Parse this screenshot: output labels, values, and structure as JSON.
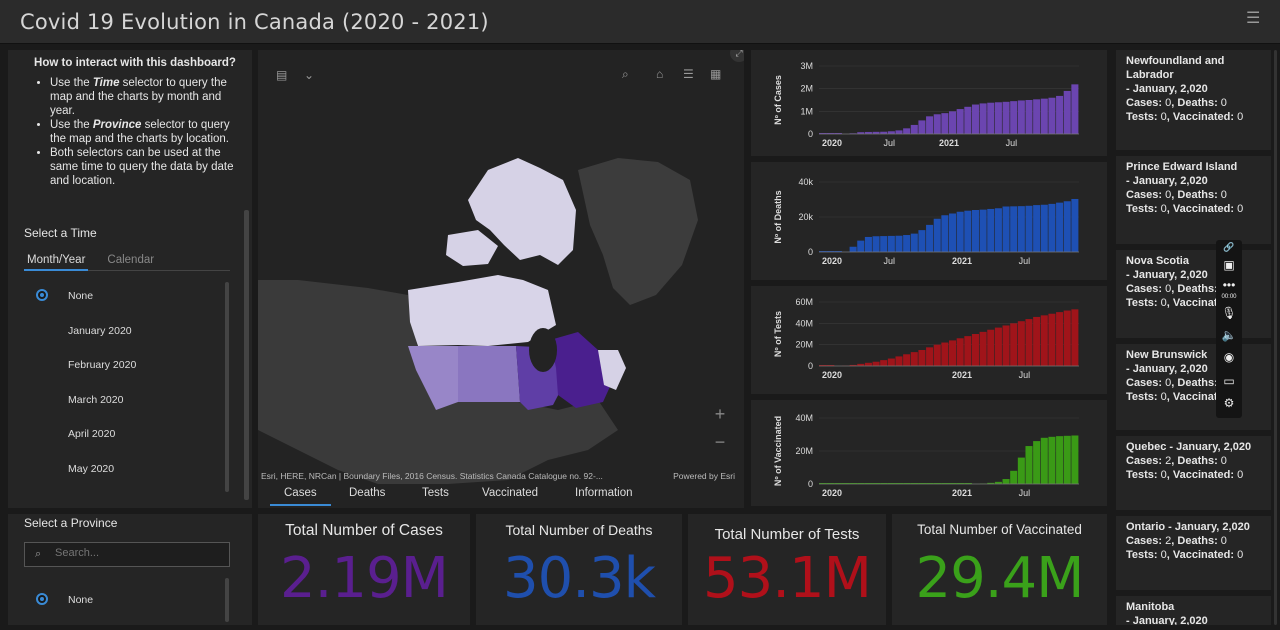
{
  "header": {
    "title": "Covid 19 Evolution in Canada (2020 - 2021)",
    "menu_icon": "hamburger-icon"
  },
  "howto": {
    "title": "How to interact with this dashboard?",
    "b1_pre": "Use the ",
    "b1_em": "Time",
    "b1_post": " selector to query the map and the charts by month and year.",
    "b2_pre": "Use the ",
    "b2_em": "Province",
    "b2_post": " selector to query the map and the charts by location.",
    "b3": "Both selectors can be used at the same time to query the data by date and location."
  },
  "time_selector": {
    "title": "Select a Time",
    "tabs": [
      "Month/Year",
      "Calendar"
    ],
    "options": [
      "None",
      "January 2020",
      "February 2020",
      "March 2020",
      "April 2020",
      "May 2020"
    ],
    "selected": "None"
  },
  "province_selector": {
    "title": "Select a Province",
    "search_placeholder": "Search...",
    "options": [
      "None"
    ],
    "selected": "None"
  },
  "map": {
    "attribution": "Esri, HERE, NRCan | Boundary Files, 2016 Census. Statistics Canada Catalogue no. 92-...",
    "powered": "Powered by Esri",
    "zoom_in": "+",
    "zoom_out": "−",
    "tabs": [
      "Cases",
      "Deaths",
      "Tests",
      "Vaccinated",
      "Information"
    ],
    "active_tab": "Cases"
  },
  "stats": [
    {
      "title": "Total Number of Cases",
      "value": "2.19M",
      "color": "#5a1f8f"
    },
    {
      "title": "Total Number of Deaths",
      "value": "30.3k",
      "color": "#1f4fad"
    },
    {
      "title": "Total Number of Tests",
      "value": "53.1M",
      "color": "#b0101a"
    },
    {
      "title": "Total Number of Vaccinated",
      "value": "29.4M",
      "color": "#3aa11a"
    }
  ],
  "chart_data": [
    {
      "type": "bar",
      "ylabel": "Nº of Cases",
      "color": "#6b45b0",
      "yticks": [
        "0",
        "1M",
        "2M",
        "3M"
      ],
      "ymax": 3000000,
      "xticks": [
        "2020",
        "Jul",
        "2021",
        "Jul"
      ],
      "values": [
        0,
        0,
        0,
        2000,
        30000,
        80000,
        90000,
        95000,
        100000,
        120000,
        160000,
        250000,
        400000,
        600000,
        780000,
        870000,
        920000,
        1000000,
        1100000,
        1200000,
        1300000,
        1350000,
        1380000,
        1400000,
        1420000,
        1450000,
        1480000,
        1500000,
        1530000,
        1560000,
        1600000,
        1680000,
        1900000,
        2190000
      ]
    },
    {
      "type": "bar",
      "ylabel": "Nº of Deaths",
      "color": "#1e50b4",
      "yticks": [
        "0",
        "20k",
        "40k"
      ],
      "ymax": 40000,
      "xticks": [
        "2020",
        "Jul",
        "2021",
        "Jul"
      ],
      "values": [
        0,
        0,
        0,
        100,
        3000,
        6500,
        8600,
        9000,
        9100,
        9200,
        9300,
        9700,
        10500,
        12500,
        15500,
        19000,
        21000,
        22000,
        23000,
        23600,
        24000,
        24200,
        24600,
        25000,
        26000,
        26100,
        26200,
        26400,
        26800,
        27000,
        27500,
        28200,
        29000,
        30300
      ]
    },
    {
      "type": "bar",
      "ylabel": "Nº of Tests",
      "color": "#a0141a",
      "yticks": [
        "0",
        "20M",
        "40M",
        "60M"
      ],
      "ymax": 60000000,
      "xticks": [
        "2020",
        "2021",
        "Jul"
      ],
      "values": [
        0,
        0,
        50000,
        300000,
        1000000,
        2000000,
        3000000,
        4000000,
        5500000,
        7000000,
        9000000,
        11000000,
        13000000,
        15000000,
        17500000,
        20000000,
        22000000,
        24000000,
        26000000,
        28000000,
        30000000,
        32000000,
        34000000,
        36000000,
        38000000,
        40000000,
        42000000,
        44000000,
        46000000,
        47500000,
        49000000,
        50500000,
        52000000,
        53100000
      ]
    },
    {
      "type": "bar",
      "ylabel": "Nº of Vaccinated",
      "color": "#3a9a16",
      "yticks": [
        "0",
        "20M",
        "40M"
      ],
      "ymax": 40000000,
      "xticks": [
        "2020",
        "2021",
        "Jul"
      ],
      "values": [
        0,
        0,
        0,
        0,
        0,
        0,
        0,
        0,
        0,
        0,
        0,
        0,
        0,
        0,
        0,
        0,
        0,
        0,
        0,
        0,
        100000,
        300000,
        700000,
        1300000,
        3000000,
        8000000,
        16000000,
        23000000,
        26000000,
        28000000,
        28600000,
        29000000,
        29200000,
        29400000
      ]
    }
  ],
  "provinces": [
    {
      "name": "Newfoundland and Labrador",
      "date": "- January, 2,020",
      "cases_l": "Cases:",
      "cases": "0",
      "deaths_l": "Deaths:",
      "deaths": "0",
      "tests_l": "Tests:",
      "tests": "0",
      "vacc_l": "Vaccinated:",
      "vacc": "0"
    },
    {
      "name": "Prince Edward Island",
      "date": "- January, 2,020",
      "cases_l": "Cases:",
      "cases": "0",
      "deaths_l": "Deaths:",
      "deaths": "0",
      "tests_l": "Tests:",
      "tests": "0",
      "vacc_l": "Vaccinated:",
      "vacc": "0"
    },
    {
      "name": "Nova Scotia",
      "date": "- January, 2,020",
      "cases_l": "Cases:",
      "cases": "0",
      "deaths_l": "Deaths:",
      "deaths": "",
      "tests_l": "Tests:",
      "tests": "0",
      "vacc_l": "Vaccinatio",
      "vacc": ""
    },
    {
      "name": "New Brunswick",
      "date": "- January, 2,020",
      "cases_l": "Cases:",
      "cases": "0",
      "deaths_l": "Deaths:",
      "deaths": "",
      "tests_l": "Tests:",
      "tests": "0",
      "vacc_l": "Vaccinat",
      "vacc": ""
    },
    {
      "name": "Quebec - January, 2,020",
      "date": "",
      "cases_l": "Cases:",
      "cases": "2",
      "deaths_l": "Deaths:",
      "deaths": "0",
      "tests_l": "Tests:",
      "tests": "0",
      "vacc_l": "Vaccinated:",
      "vacc": "0"
    },
    {
      "name": "Ontario - January, 2,020",
      "date": "",
      "cases_l": "Cases:",
      "cases": "2",
      "deaths_l": "Deaths:",
      "deaths": "0",
      "tests_l": "Tests:",
      "tests": "0",
      "vacc_l": "Vaccinated:",
      "vacc": "0"
    },
    {
      "name": "Manitoba",
      "date": "- January, 2,020",
      "cases_l": "",
      "cases": "",
      "deaths_l": "",
      "deaths": "",
      "tests_l": "",
      "tests": "",
      "vacc_l": "",
      "vacc": ""
    }
  ],
  "overlay_icons": [
    "link-icon",
    "camera-icon",
    "more-icon",
    "microphone-icon",
    "speaker-icon",
    "webcam-icon",
    "screen-icon",
    "settings-icon"
  ],
  "overlay_timer": "00:00"
}
